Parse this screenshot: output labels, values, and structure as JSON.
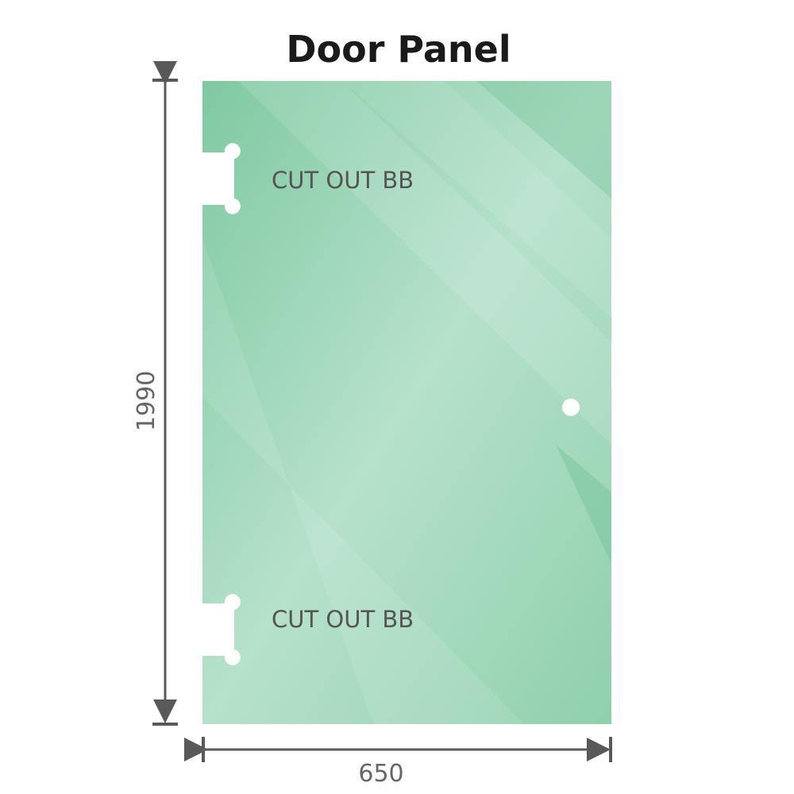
{
  "title": "Door Panel",
  "cutout_top_label": "CUT OUT BB",
  "cutout_bottom_label": "CUT OUT BB",
  "height_dimension": "1990",
  "width_dimension": "650",
  "colors": {
    "glass": "#8fd0ad",
    "glass_highlight": "#bfe5d2",
    "dimension_line": "#595959"
  }
}
